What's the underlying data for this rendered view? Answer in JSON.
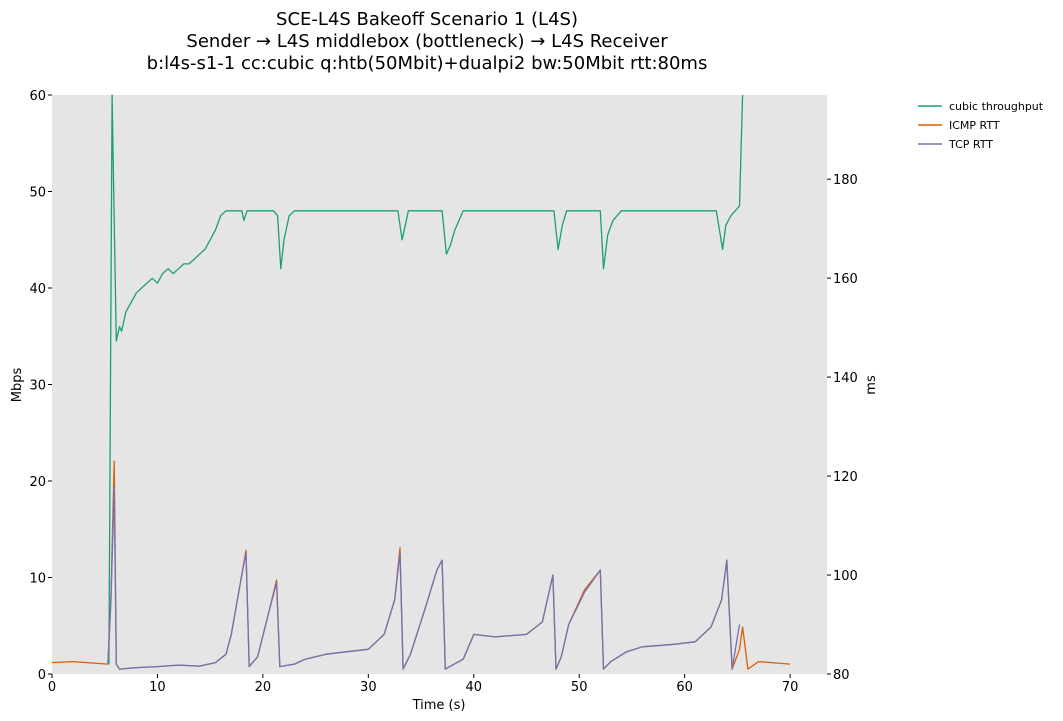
{
  "chart_data": {
    "type": "line",
    "title": [
      "SCE-L4S Bakeoff Scenario 1 (L4S)",
      "Sender → L4S middlebox (bottleneck) → L4S Receiver",
      "b:l4s-s1-1 cc:cubic q:htb(50Mbit)+dualpi2 bw:50Mbit rtt:80ms"
    ],
    "xlabel": "Time (s)",
    "ylabel_left": "Mbps",
    "ylabel_right": "ms",
    "xlim": [
      0,
      73.5
    ],
    "ylim_left": [
      0,
      60
    ],
    "ylim_right": [
      80,
      197
    ],
    "xticks": [
      0,
      10,
      20,
      30,
      40,
      50,
      60,
      70
    ],
    "yticks_left": [
      0,
      10,
      20,
      30,
      40,
      50,
      60
    ],
    "yticks_right": [
      80,
      100,
      120,
      140,
      160,
      180
    ],
    "grid": false,
    "legend_position": "outside-right",
    "background": "#e5e5e5",
    "series": [
      {
        "name": "cubic throughput",
        "axis": "left",
        "color": "#1b9e77",
        "x": [
          5.4,
          5.7,
          5.9,
          6.1,
          6.4,
          6.6,
          7.0,
          7.5,
          8.0,
          8.5,
          9.0,
          9.5,
          10.0,
          10.5,
          11.0,
          11.5,
          12.0,
          12.5,
          13.0,
          13.5,
          14.0,
          14.5,
          15.0,
          15.5,
          16.0,
          16.5,
          17.0,
          17.5,
          18.0,
          18.2,
          18.5,
          18.9,
          19.5,
          20.0,
          20.5,
          21.0,
          21.4,
          21.7,
          22.0,
          22.5,
          23.0,
          23.5,
          24.5,
          26.0,
          28.0,
          30.0,
          32.0,
          32.8,
          33.2,
          33.8,
          35.0,
          36.5,
          37.0,
          37.4,
          37.8,
          38.2,
          39.0,
          40.0,
          41.0,
          43.0,
          45.0,
          47.0,
          47.6,
          48.0,
          48.4,
          48.8,
          49.2,
          50.0,
          51.0,
          52.0,
          52.3,
          52.7,
          53.2,
          54.0,
          55.0,
          57.0,
          59.0,
          61.0,
          63.0,
          63.6,
          63.9,
          64.4,
          64.8,
          65.2,
          65.5
        ],
        "y": [
          1.0,
          60.0,
          47.0,
          34.5,
          36.0,
          35.5,
          37.5,
          38.5,
          39.5,
          40.0,
          40.5,
          41.0,
          40.5,
          41.5,
          42.0,
          41.5,
          42.0,
          42.5,
          42.5,
          43.0,
          43.5,
          44.0,
          45.0,
          46.0,
          47.5,
          48.0,
          48.0,
          48.0,
          48.0,
          47.0,
          48.0,
          48.0,
          48.0,
          48.0,
          48.0,
          48.0,
          47.5,
          42.0,
          45.0,
          47.5,
          48.0,
          48.0,
          48.0,
          48.0,
          48.0,
          48.0,
          48.0,
          48.0,
          45.0,
          48.0,
          48.0,
          48.0,
          48.0,
          43.5,
          44.5,
          46.0,
          48.0,
          48.0,
          48.0,
          48.0,
          48.0,
          48.0,
          48.0,
          44.0,
          46.5,
          48.0,
          48.0,
          48.0,
          48.0,
          48.0,
          42.0,
          45.5,
          47.0,
          48.0,
          48.0,
          48.0,
          48.0,
          48.0,
          48.0,
          44.0,
          46.5,
          47.5,
          48.0,
          48.5,
          60.0
        ]
      },
      {
        "name": "ICMP RTT",
        "axis": "right",
        "color": "#d95f02",
        "x": [
          0.0,
          2.0,
          4.0,
          5.3,
          5.6,
          5.9,
          6.1,
          6.4,
          8.0,
          10.0,
          12.0,
          14.0,
          15.5,
          16.5,
          17.0,
          17.5,
          18.0,
          18.4,
          18.7,
          19.5,
          20.5,
          21.3,
          21.6,
          23.0,
          24.0,
          26.0,
          28.0,
          30.0,
          31.5,
          32.5,
          33.0,
          33.3,
          34.0,
          35.5,
          36.5,
          37.0,
          37.3,
          39.0,
          40.0,
          42.0,
          45.0,
          46.5,
          47.5,
          47.8,
          48.3,
          49.0,
          50.5,
          52.0,
          52.3,
          53.0,
          54.5,
          56.0,
          59.0,
          61.0,
          62.5,
          63.5,
          64.0,
          64.5,
          65.2,
          65.5,
          66.0,
          67.0,
          70.0
        ],
        "y": [
          82.3,
          82.5,
          82.2,
          82.0,
          96.0,
          123.0,
          82.0,
          81.0,
          81.3,
          81.5,
          81.8,
          81.6,
          82.3,
          84.0,
          88.0,
          94.0,
          100.0,
          105.0,
          81.5,
          83.5,
          92.0,
          99.0,
          81.5,
          82.0,
          83.0,
          84.0,
          84.5,
          85.0,
          88.0,
          95.0,
          105.5,
          81.0,
          84.0,
          94.0,
          101.0,
          103.0,
          81.0,
          83.0,
          88.0,
          87.5,
          88.0,
          90.5,
          100.0,
          81.0,
          83.5,
          90.0,
          97.0,
          101.0,
          81.0,
          82.5,
          84.5,
          85.5,
          86.0,
          86.5,
          89.5,
          95.0,
          103.0,
          81.0,
          85.0,
          89.5,
          81.0,
          82.5,
          82.0
        ]
      },
      {
        "name": "TCP RTT",
        "axis": "right",
        "color": "#7570b3",
        "x": [
          5.3,
          5.6,
          5.9,
          6.1,
          6.4,
          8.0,
          10.0,
          12.0,
          14.0,
          15.5,
          16.5,
          17.0,
          17.5,
          18.0,
          18.4,
          18.7,
          19.5,
          20.5,
          21.3,
          21.6,
          23.0,
          24.0,
          26.0,
          28.0,
          30.0,
          31.5,
          32.5,
          33.0,
          33.3,
          34.0,
          35.5,
          36.5,
          37.0,
          37.3,
          39.0,
          40.0,
          42.0,
          45.0,
          46.5,
          47.5,
          47.8,
          48.3,
          49.0,
          50.5,
          52.0,
          52.3,
          53.0,
          54.5,
          56.0,
          59.0,
          61.0,
          62.5,
          63.5,
          64.0,
          64.5,
          65.2
        ],
        "y": [
          82.0,
          95.0,
          118.0,
          82.0,
          81.0,
          81.3,
          81.5,
          81.8,
          81.6,
          82.3,
          84.0,
          88.0,
          94.0,
          100.0,
          104.5,
          81.5,
          83.5,
          92.0,
          98.5,
          81.5,
          82.0,
          83.0,
          84.0,
          84.5,
          85.0,
          88.0,
          95.0,
          104.5,
          81.0,
          84.0,
          94.0,
          101.0,
          103.0,
          81.0,
          83.0,
          88.0,
          87.5,
          88.0,
          90.5,
          100.0,
          81.0,
          83.5,
          90.0,
          96.5,
          101.0,
          81.0,
          82.5,
          84.5,
          85.5,
          86.0,
          86.5,
          89.5,
          95.0,
          103.0,
          81.0,
          90.0
        ]
      }
    ]
  }
}
